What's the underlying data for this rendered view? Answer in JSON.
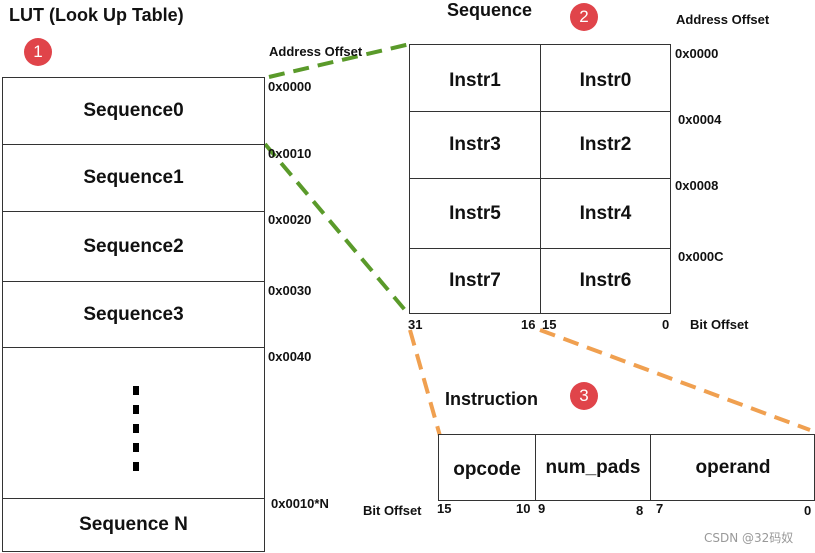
{
  "lut": {
    "title": "LUT (Look Up Table)",
    "badge": "1",
    "address_offset_label": "Address Offset",
    "rows": [
      "Sequence0",
      "Sequence1",
      "Sequence2",
      "Sequence3",
      "Sequence N"
    ],
    "offsets": [
      "0x0000",
      "0x0010",
      "0x0020",
      "0x0030",
      "0x0040",
      "0x0010*N"
    ]
  },
  "sequence": {
    "title": "Sequence",
    "badge": "2",
    "address_offset_label": "Address Offset",
    "cells": [
      [
        "Instr1",
        "Instr0"
      ],
      [
        "Instr3",
        "Instr2"
      ],
      [
        "Instr5",
        "Instr4"
      ],
      [
        "Instr7",
        "Instr6"
      ]
    ],
    "offsets": [
      "0x0000",
      "0x0004",
      "0x0008",
      "0x000C"
    ],
    "bit_labels": [
      "31",
      "16",
      "15",
      "0"
    ],
    "bit_offset_label": "Bit Offset"
  },
  "instruction": {
    "title": "Instruction",
    "badge": "3",
    "fields": [
      "opcode",
      "num_pads",
      "operand"
    ],
    "bit_labels": [
      "15",
      "10",
      "9",
      "8",
      "7",
      "0"
    ],
    "bit_offset_label": "Bit Offset"
  },
  "colors": {
    "green": "#5a9a2a",
    "orange": "#f0a050",
    "badge": "#e0444a"
  },
  "watermark": "CSDN @32码奴"
}
